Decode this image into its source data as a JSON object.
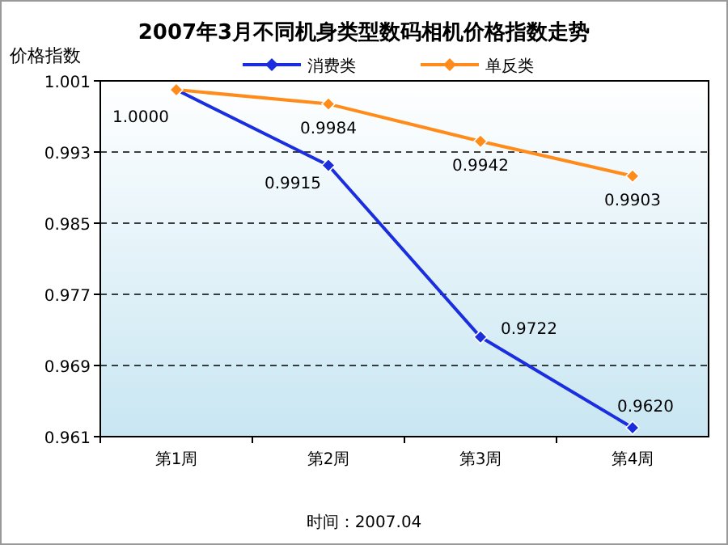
{
  "chart_data": {
    "type": "line",
    "title": "2007年3月不同机身类型数码相机价格指数走势",
    "ylabel": "价格指数",
    "categories": [
      "第1周",
      "第2周",
      "第3周",
      "第4周"
    ],
    "series": [
      {
        "name": "消费类",
        "color": "#1a2ee0",
        "values": [
          1.0,
          0.9915,
          0.9722,
          0.962
        ],
        "value_labels": [
          "1.0000",
          "0.9915",
          "0.9722",
          "0.9620"
        ]
      },
      {
        "name": "单反类",
        "color": "#ff8c1a",
        "values": [
          1.0,
          0.9984,
          0.9942,
          0.9903
        ],
        "value_labels": [
          null,
          "0.9984",
          "0.9942",
          "0.9903"
        ]
      }
    ],
    "ylim": [
      0.961,
      1.001
    ],
    "yticks": [
      0.961,
      0.969,
      0.977,
      0.985,
      0.993,
      1.001
    ],
    "grid": "y",
    "legend": "top",
    "marker": "diamond",
    "line_style": "solid",
    "annotations": [
      "时间：2007.04"
    ]
  }
}
